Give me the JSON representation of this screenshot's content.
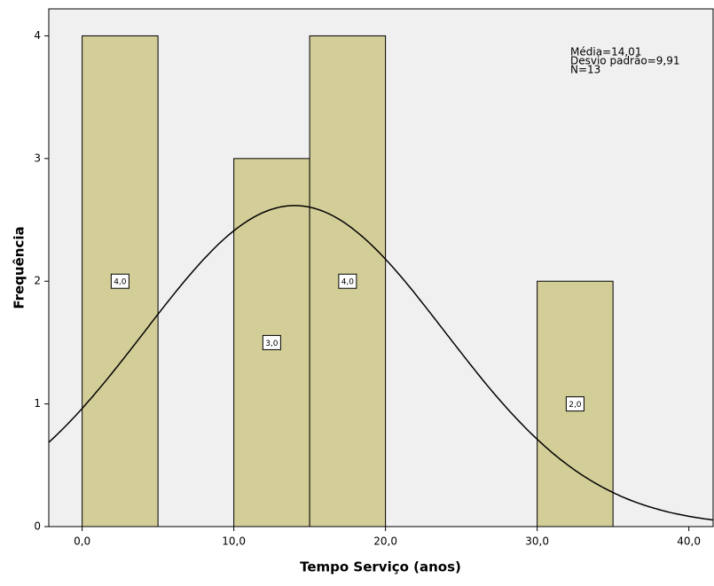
{
  "chart_data": {
    "type": "histogram",
    "bins": [
      0,
      5,
      10,
      15,
      20,
      25,
      30,
      35
    ],
    "values": [
      4,
      0,
      3,
      4,
      0,
      0,
      2
    ],
    "value_labels": [
      "4,0",
      null,
      "3,0",
      "4,0",
      null,
      null,
      "2,0"
    ],
    "color": "#d3ce98",
    "xlabel": "Tempo Serviço (anos)",
    "ylabel": "Frequência",
    "xlim": [
      -2.2,
      41.6
    ],
    "ylim": [
      0,
      4.22
    ],
    "xticks": [
      {
        "value": 0,
        "label": "0,0"
      },
      {
        "value": 10,
        "label": "10,0"
      },
      {
        "value": 20,
        "label": "20,0"
      },
      {
        "value": 30,
        "label": "30,0"
      },
      {
        "value": 40,
        "label": "40,0"
      }
    ],
    "yticks": [
      0,
      1,
      2,
      3,
      4
    ],
    "normal_curve": {
      "mean": 14.01,
      "sd": 9.91,
      "n": 13
    },
    "annotations": [
      "Média=14,01",
      "Desvio padrão=9,91",
      "N=13"
    ]
  }
}
